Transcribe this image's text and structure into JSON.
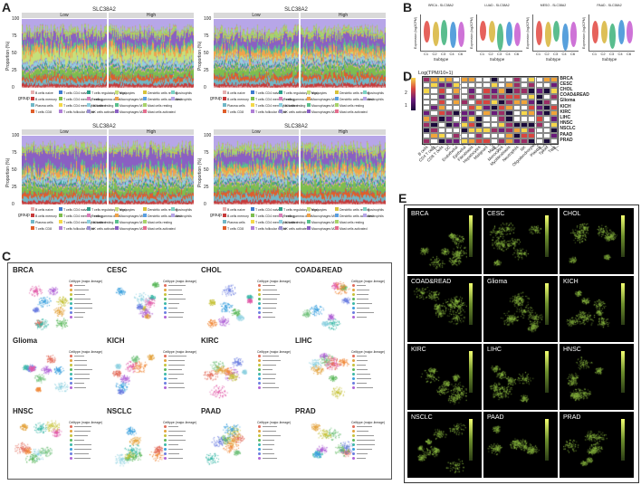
{
  "panel_labels": {
    "A": "A",
    "B": "B",
    "C": "C",
    "D": "D",
    "E": "E"
  },
  "panelA": {
    "gene": "SLC38A2",
    "groups": {
      "low": "Low",
      "high": "High"
    },
    "ylabel": "Proportion (%)",
    "yticks": [
      "100",
      "75",
      "50",
      "25",
      "0"
    ],
    "cancers": [
      "BRCA",
      "LUAD",
      "MESO",
      "PAAD"
    ],
    "legend_title": "group",
    "legend_items": [
      "B cells naive",
      "B cells memory",
      "Plasma cells",
      "T cells CD8",
      "T cells CD4 naive",
      "T cells CD4 memory resting",
      "T cells CD4 memory activated",
      "T cells follicular helper",
      "T cells regulatory (Tregs)",
      "T cells gamma delta",
      "NK cells resting",
      "NK cells activated",
      "Monocytes",
      "Macrophages M0",
      "Macrophages M1",
      "Macrophages M2",
      "Dendritic cells resting",
      "Dendritic cells activated",
      "Mast cells resting",
      "Mast cells activated",
      "Eosinophils",
      "Neutrophils"
    ],
    "colors": [
      "#e6b0b0",
      "#c73a3a",
      "#6fb7c7",
      "#e05e2a",
      "#3f7bd0",
      "#7dbd4f",
      "#f4d84a",
      "#b07fd6",
      "#2e9f8a",
      "#d97eb9",
      "#8fd1e0",
      "#9a8fd2",
      "#c6e07a",
      "#f0a34c",
      "#5ac08d",
      "#8a5fc3",
      "#d6c23b",
      "#5a9fe0",
      "#a8d36a",
      "#e46e8e",
      "#7cd3c5",
      "#b7a6e8"
    ]
  },
  "panelB": {
    "xlabel": "Subtype",
    "ylabel": "Expression (log2CPM)",
    "subtypes": [
      "C1",
      "C2",
      "C3",
      "C4",
      "C6"
    ],
    "subtypes_last": [
      "C1",
      "C2",
      "C3",
      "C4",
      "C6"
    ],
    "panels": [
      "BRCA",
      "LUAD",
      "MESO",
      "PAAD"
    ]
  },
  "panelC": {
    "cancers": [
      "BRCA",
      "CESC",
      "CHOL",
      "COAD&READ",
      "Glioma",
      "KICH",
      "KIRC",
      "LIHC",
      "HNSC",
      "NSCLC",
      "PAAD",
      "PRAD"
    ],
    "legend_title": "Celltype (major-lineage)"
  },
  "panelD": {
    "legend_title": "Log(TPM/10+1)",
    "scale": [
      "3",
      "2",
      "1"
    ],
    "rows": [
      "BRCA",
      "CESC",
      "CHOL",
      "COAD&READ",
      "Glioma",
      "KICH",
      "KIRC",
      "LIHC",
      "HNSC",
      "NSCLC",
      "PAAD",
      "PRAD"
    ],
    "cols": [
      "B cells",
      "CD4 T cells",
      "CD8 T cells",
      "DC",
      "Endothelial",
      "Epithelial",
      "Fibroblasts",
      "Hepatocytes",
      "Malignant",
      "Mast",
      "Monocytes",
      "Myofibroblasts",
      "Neutrophils",
      "NK",
      "Oligodendrocytes",
      "Plasma",
      "Tprolif",
      "Treg"
    ],
    "colors": {
      "high": "#f6d74a",
      "mid": "#d8453f",
      "low": "#6a1b7a",
      "vlow": "#1a0a3a",
      "na": "#ffffff"
    }
  },
  "panelE": {
    "cancers": [
      "BRCA",
      "CESC",
      "CHOL",
      "COAD&READ",
      "Glioma",
      "KICH",
      "KIRC",
      "LIHC",
      "HNSC",
      "NSCLC",
      "PAAD",
      "PRAD"
    ]
  }
}
